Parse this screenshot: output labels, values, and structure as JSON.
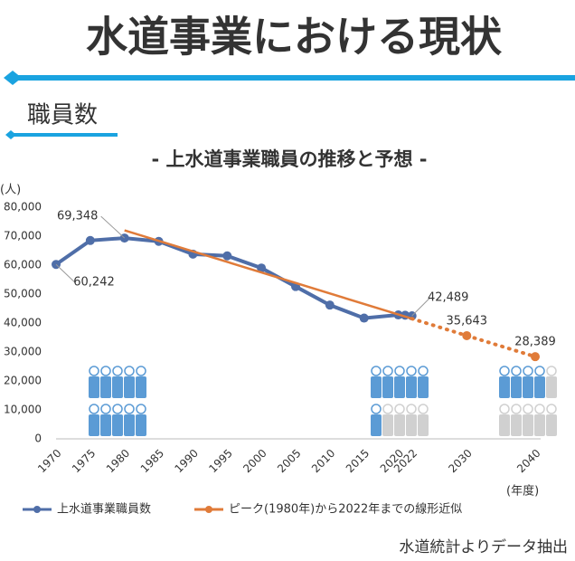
{
  "header": {
    "title": "水道事業における現状",
    "section": "職員数"
  },
  "footer": {
    "source": "水道統計よりデータ抽出"
  },
  "chart_data": {
    "type": "line",
    "title": "- 上水道事業職員の推移と予想 -",
    "y_unit": "(人)",
    "x_label": "(年度)",
    "xlim": [
      1970,
      2040
    ],
    "ylim": [
      0,
      80000
    ],
    "xticks": [
      1970,
      1975,
      1980,
      1985,
      1990,
      1995,
      2000,
      2005,
      2010,
      2015,
      2020,
      2022,
      2030,
      2040
    ],
    "yticks": [
      0,
      {
        "value": 10000,
        "label": "10,000"
      },
      {
        "value": 20000,
        "label": "20,000"
      },
      {
        "value": 30000,
        "label": "30,000"
      },
      {
        "value": 40000,
        "label": "40,000"
      },
      {
        "value": 50000,
        "label": "50,000"
      },
      {
        "value": 60000,
        "label": "60,000"
      },
      {
        "value": 70000,
        "label": "70,000"
      },
      {
        "value": 80000,
        "label": "80,000"
      }
    ],
    "series": [
      {
        "name": "上水道事業職員数",
        "color": "#4f6ea8",
        "x": [
          1970,
          1975,
          1980,
          1985,
          1990,
          1995,
          2000,
          2005,
          2010,
          2015,
          2020,
          2021,
          2022
        ],
        "values": [
          60242,
          68500,
          69348,
          68200,
          63800,
          63200,
          59000,
          52600,
          46200,
          41700,
          42800,
          42700,
          42489
        ],
        "value_labels": [
          "60,242",
          null,
          "69,348",
          null,
          null,
          null,
          null,
          null,
          null,
          null,
          null,
          null,
          "42,489"
        ]
      },
      {
        "name": "ピーク(1980年)から2022年までの線形近似",
        "color": "#e07b39",
        "x": [
          1980,
          2022,
          2030,
          2040
        ],
        "values": [
          72000,
          41500,
          35643,
          28389
        ],
        "value_labels": [
          null,
          null,
          "35,643",
          "28,389"
        ],
        "dotted_after": 2022
      }
    ]
  }
}
